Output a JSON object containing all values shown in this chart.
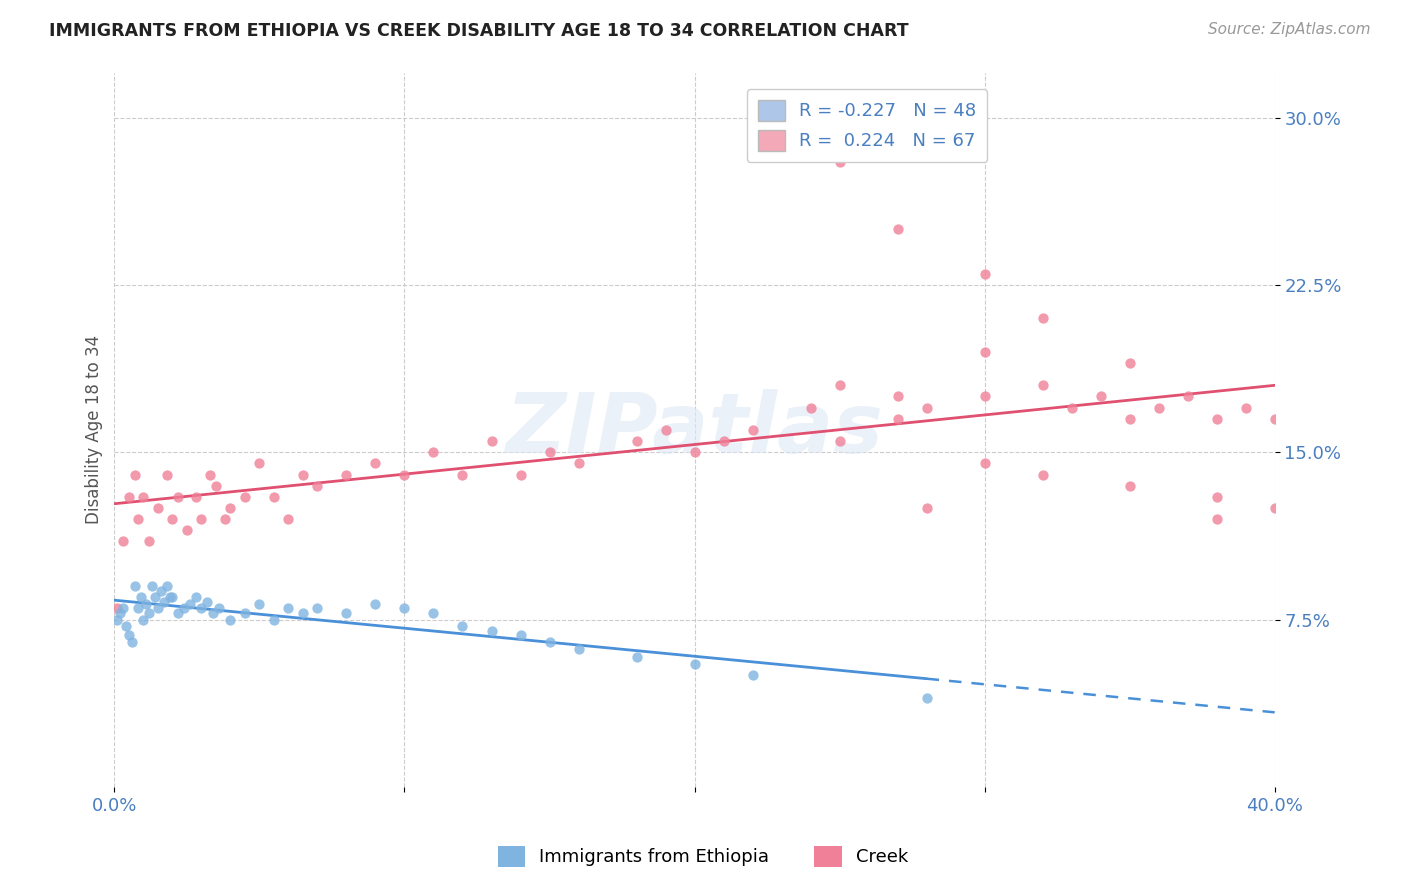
{
  "title": "IMMIGRANTS FROM ETHIOPIA VS CREEK DISABILITY AGE 18 TO 34 CORRELATION CHART",
  "source_text": "Source: ZipAtlas.com",
  "ylabel": "Disability Age 18 to 34",
  "xlim": [
    0.0,
    0.4
  ],
  "ylim": [
    0.0,
    0.32
  ],
  "xticks": [
    0.0,
    0.1,
    0.2,
    0.3,
    0.4
  ],
  "xticklabels": [
    "0.0%",
    "",
    "",
    "",
    "40.0%"
  ],
  "yticks": [
    0.075,
    0.15,
    0.225,
    0.3
  ],
  "yticklabels": [
    "7.5%",
    "15.0%",
    "22.5%",
    "30.0%"
  ],
  "legend1_label": "R = -0.227   N = 48",
  "legend2_label": "R =  0.224   N = 67",
  "legend1_color": "#aec6e8",
  "legend2_color": "#f4a9b8",
  "scatter1_color": "#7fb3e0",
  "scatter2_color": "#f08098",
  "trendline1_color": "#4a90d9",
  "trendline2_color": "#e05070",
  "watermark": "ZIPatlas",
  "background_color": "#ffffff",
  "legend_label1": "Immigrants from Ethiopia",
  "legend_label2": "Creek",
  "ethiopia_x": [
    0.001,
    0.002,
    0.003,
    0.004,
    0.005,
    0.006,
    0.007,
    0.008,
    0.009,
    0.01,
    0.011,
    0.012,
    0.013,
    0.014,
    0.015,
    0.016,
    0.017,
    0.018,
    0.019,
    0.02,
    0.022,
    0.024,
    0.026,
    0.028,
    0.03,
    0.032,
    0.034,
    0.036,
    0.04,
    0.045,
    0.05,
    0.055,
    0.06,
    0.065,
    0.07,
    0.08,
    0.09,
    0.1,
    0.11,
    0.12,
    0.13,
    0.14,
    0.15,
    0.16,
    0.18,
    0.2,
    0.22,
    0.28
  ],
  "ethiopia_y": [
    0.075,
    0.078,
    0.08,
    0.072,
    0.068,
    0.065,
    0.09,
    0.08,
    0.085,
    0.075,
    0.082,
    0.078,
    0.09,
    0.085,
    0.08,
    0.088,
    0.083,
    0.09,
    0.085,
    0.085,
    0.078,
    0.08,
    0.082,
    0.085,
    0.08,
    0.083,
    0.078,
    0.08,
    0.075,
    0.078,
    0.082,
    0.075,
    0.08,
    0.078,
    0.08,
    0.078,
    0.082,
    0.08,
    0.078,
    0.072,
    0.07,
    0.068,
    0.065,
    0.062,
    0.058,
    0.055,
    0.05,
    0.04
  ],
  "creek_x": [
    0.001,
    0.003,
    0.005,
    0.007,
    0.008,
    0.01,
    0.012,
    0.015,
    0.018,
    0.02,
    0.022,
    0.025,
    0.028,
    0.03,
    0.033,
    0.035,
    0.038,
    0.04,
    0.045,
    0.05,
    0.055,
    0.06,
    0.065,
    0.07,
    0.08,
    0.09,
    0.1,
    0.11,
    0.12,
    0.13,
    0.14,
    0.15,
    0.16,
    0.18,
    0.19,
    0.2,
    0.21,
    0.22,
    0.24,
    0.25,
    0.27,
    0.28,
    0.3,
    0.32,
    0.33,
    0.34,
    0.35,
    0.36,
    0.37,
    0.38,
    0.39,
    0.4,
    0.25,
    0.27,
    0.3,
    0.32,
    0.35,
    0.38,
    0.27,
    0.3,
    0.28,
    0.25,
    0.3,
    0.32,
    0.35,
    0.38,
    0.4
  ],
  "creek_y": [
    0.08,
    0.11,
    0.13,
    0.14,
    0.12,
    0.13,
    0.11,
    0.125,
    0.14,
    0.12,
    0.13,
    0.115,
    0.13,
    0.12,
    0.14,
    0.135,
    0.12,
    0.125,
    0.13,
    0.145,
    0.13,
    0.12,
    0.14,
    0.135,
    0.14,
    0.145,
    0.14,
    0.15,
    0.14,
    0.155,
    0.14,
    0.15,
    0.145,
    0.155,
    0.16,
    0.15,
    0.155,
    0.16,
    0.17,
    0.155,
    0.165,
    0.17,
    0.175,
    0.18,
    0.17,
    0.175,
    0.165,
    0.17,
    0.175,
    0.165,
    0.17,
    0.165,
    0.28,
    0.25,
    0.23,
    0.21,
    0.19,
    0.13,
    0.175,
    0.195,
    0.125,
    0.18,
    0.145,
    0.14,
    0.135,
    0.12,
    0.125
  ]
}
